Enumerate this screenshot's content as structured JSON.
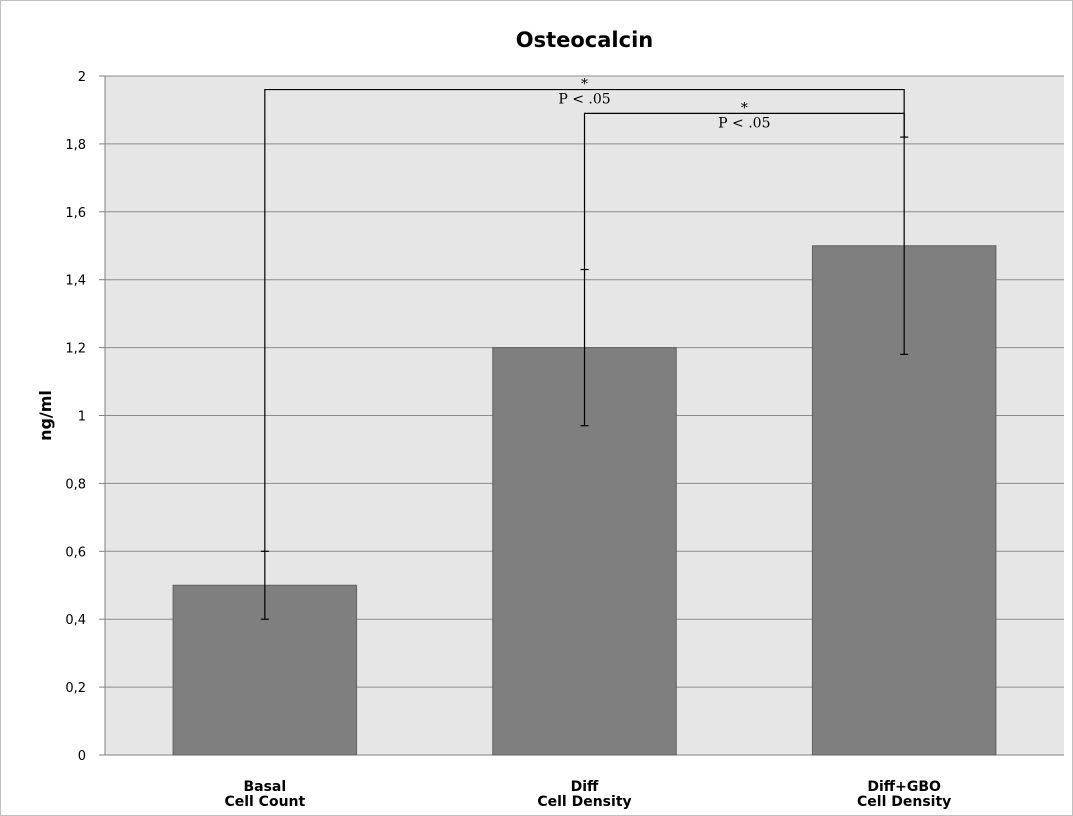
{
  "chart_data": {
    "type": "bar",
    "title": "Osteocalcin",
    "xlabel": "",
    "ylabel": "ng/ml",
    "ylim": [
      0,
      2
    ],
    "yticks": [
      "0",
      "0,2",
      "0,4",
      "0,6",
      "0,8",
      "1",
      "1,2",
      "1,4",
      "1,6",
      "1,8",
      "2"
    ],
    "ytick_values": [
      0,
      0.2,
      0.4,
      0.6,
      0.8,
      1.0,
      1.2,
      1.4,
      1.6,
      1.8,
      2.0
    ],
    "grid": true,
    "categories": [
      [
        "Basal",
        "Cell Count"
      ],
      [
        "Diff",
        "Cell Density"
      ],
      [
        "Diff+GBO",
        "Cell Density"
      ]
    ],
    "values": [
      0.5,
      1.2,
      1.5
    ],
    "error_bars": [
      {
        "low": 0.4,
        "high": 0.6
      },
      {
        "low": 0.97,
        "high": 1.43
      },
      {
        "low": 1.18,
        "high": 1.82
      }
    ],
    "bar_color": "#7f7f7f",
    "plot_background": "#e6e6e6",
    "gridline_color": "#8c8c8c",
    "significance": [
      {
        "from": 0,
        "to": 2,
        "level": 1.96,
        "star": "*",
        "label": "P < .05"
      },
      {
        "from": 1,
        "to": 2,
        "level": 1.89,
        "star": "*",
        "label": "P < .05"
      }
    ]
  }
}
